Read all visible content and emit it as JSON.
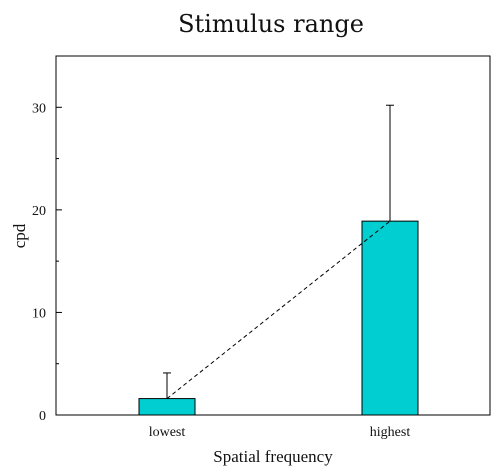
{
  "chart_data": {
    "type": "bar",
    "title": "Stimulus range",
    "xlabel": "Spatial frequency",
    "ylabel": "cpd",
    "categories": [
      "lowest",
      "highest"
    ],
    "values": [
      1.6,
      18.9
    ],
    "error_upper": [
      4.1,
      30.2
    ],
    "ylim": [
      0,
      35
    ],
    "yticks": [
      0,
      10,
      20,
      30
    ],
    "y_minor_step": 5,
    "bar_color": "#00CED1",
    "trend_line": "dashed line connecting bar tops",
    "grid": false,
    "legend": "none"
  }
}
